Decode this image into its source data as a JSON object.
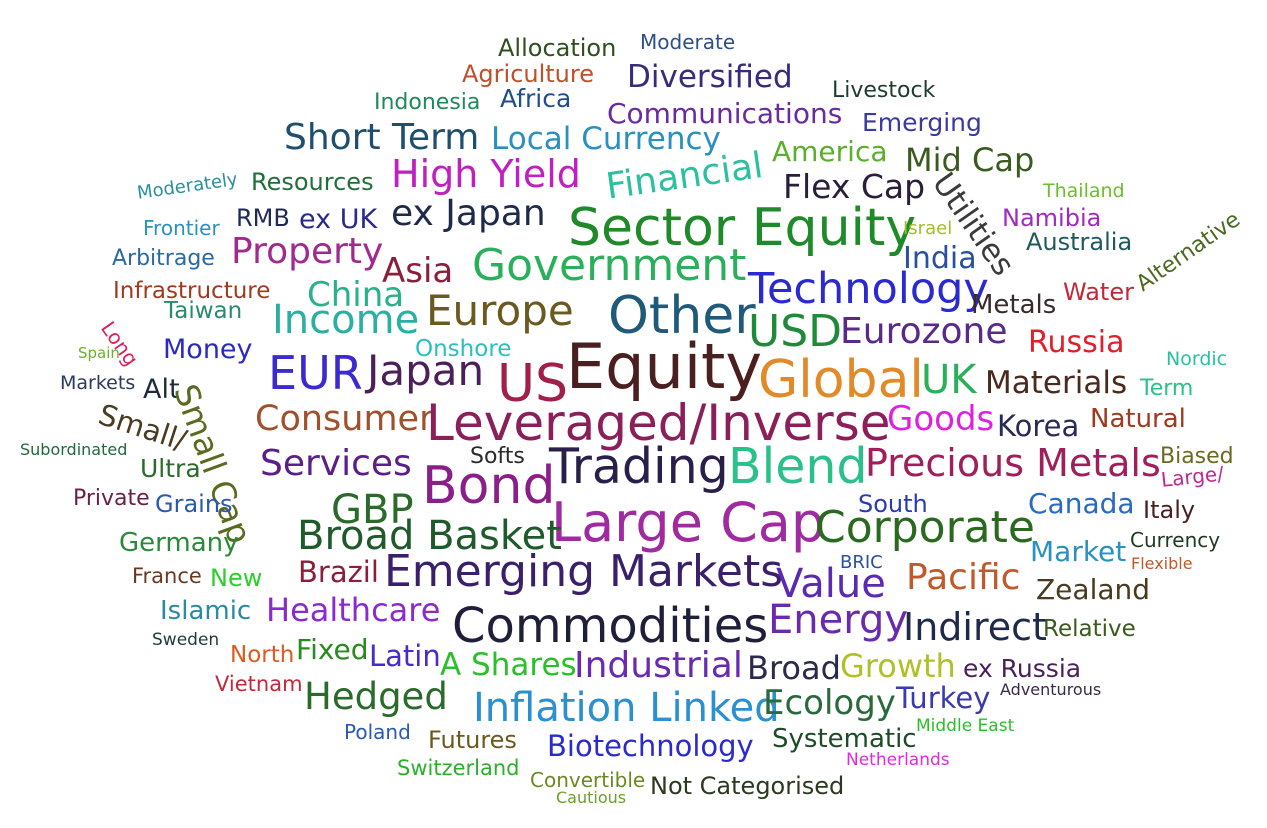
{
  "words": [
    {
      "text": "Allocation",
      "color": "#2f4f1f"
    },
    {
      "text": "Moderate",
      "color": "#2a4f8a"
    },
    {
      "text": "Agriculture",
      "color": "#c0502a"
    },
    {
      "text": "Diversified",
      "color": "#3a2a7a"
    },
    {
      "text": "Livestock",
      "color": "#1f3b2f"
    },
    {
      "text": "Indonesia",
      "color": "#1f8a5a"
    },
    {
      "text": "Africa",
      "color": "#1f4f8a"
    },
    {
      "text": "Communications",
      "color": "#6a2aa0"
    },
    {
      "text": "Emerging",
      "color": "#3a3aa0"
    },
    {
      "text": "Short Term",
      "color": "#1f4f6f"
    },
    {
      "text": "Local Currency",
      "color": "#2a90c0"
    },
    {
      "text": "America",
      "color": "#5ab02a"
    },
    {
      "text": "Mid Cap",
      "color": "#3a5a1f"
    },
    {
      "text": "Moderately",
      "color": "#2a90a0"
    },
    {
      "text": "Resources",
      "color": "#1f6f3a"
    },
    {
      "text": "High Yield",
      "color": "#c020c0"
    },
    {
      "text": "Financial",
      "color": "#2ac0a0"
    },
    {
      "text": "Flex Cap",
      "color": "#2a1f3a"
    },
    {
      "text": "Utilities",
      "color": "#3a3a3a"
    },
    {
      "text": "Thailand",
      "color": "#6ac02a"
    },
    {
      "text": "Frontier",
      "color": "#2a90c0"
    },
    {
      "text": "RMB",
      "color": "#1f2a5a"
    },
    {
      "text": "ex UK",
      "color": "#2a2a8a"
    },
    {
      "text": "ex Japan",
      "color": "#1f2a4a"
    },
    {
      "text": "Sector Equity",
      "color": "#1f8a2a"
    },
    {
      "text": "Israel",
      "color": "#a0c02a"
    },
    {
      "text": "Namibia",
      "color": "#a02ac0"
    },
    {
      "text": "Arbitrage",
      "color": "#2a6aa0"
    },
    {
      "text": "Property",
      "color": "#a02a90"
    },
    {
      "text": "Asia",
      "color": "#8a1f3a"
    },
    {
      "text": "Government",
      "color": "#2ab05a"
    },
    {
      "text": "India",
      "color": "#2a4fa0"
    },
    {
      "text": "Australia",
      "color": "#1f5a5a"
    },
    {
      "text": "Infrastructure",
      "color": "#a03a1f"
    },
    {
      "text": "China",
      "color": "#2ab08a"
    },
    {
      "text": "Technology",
      "color": "#2a2ad0"
    },
    {
      "text": "Metals",
      "color": "#3a2a2a"
    },
    {
      "text": "Water",
      "color": "#c02a3a"
    },
    {
      "text": "Alternative",
      "color": "#4a6a1f"
    },
    {
      "text": "Long",
      "color": "#e0205a"
    },
    {
      "text": "Taiwan",
      "color": "#2a8a6a"
    },
    {
      "text": "Income",
      "color": "#2ab0a0"
    },
    {
      "text": "Europe",
      "color": "#6a5a1f"
    },
    {
      "text": "Other",
      "color": "#1f5a7a"
    },
    {
      "text": "USD",
      "color": "#1f8a3a"
    },
    {
      "text": "Eurozone",
      "color": "#5a2a8a"
    },
    {
      "text": "Spain",
      "color": "#6ab02a"
    },
    {
      "text": "Money",
      "color": "#2a2ac0"
    },
    {
      "text": "Onshore",
      "color": "#2ac0c0"
    },
    {
      "text": "Russia",
      "color": "#e0202a"
    },
    {
      "text": "Nordic",
      "color": "#2ac0a0"
    },
    {
      "text": "Markets",
      "color": "#2a3a5a"
    },
    {
      "text": "Alt",
      "color": "#1f2a3a"
    },
    {
      "text": "EUR",
      "color": "#3a2ad0"
    },
    {
      "text": "Japan",
      "color": "#4a1f5a"
    },
    {
      "text": "US",
      "color": "#a0204a"
    },
    {
      "text": "Equity",
      "color": "#4a1f1f"
    },
    {
      "text": "Global",
      "color": "#e08a2a"
    },
    {
      "text": "UK",
      "color": "#2ab05a"
    },
    {
      "text": "Materials",
      "color": "#4a2a1f"
    },
    {
      "text": "Term",
      "color": "#2ac08a"
    },
    {
      "text": "Small/",
      "color": "#4a3a1f"
    },
    {
      "text": "Small Cap",
      "color": "#5a6a1f"
    },
    {
      "text": "Consumer",
      "color": "#a0502a"
    },
    {
      "text": "Leveraged/Inverse",
      "color": "#8a1f5a"
    },
    {
      "text": "Goods",
      "color": "#e020e0"
    },
    {
      "text": "Korea",
      "color": "#2a2a5a"
    },
    {
      "text": "Natural",
      "color": "#a03a1f"
    },
    {
      "text": "Subordinated",
      "color": "#1f6a3a"
    },
    {
      "text": "Ultra",
      "color": "#2a6a2a"
    },
    {
      "text": "Services",
      "color": "#5a1f8a"
    },
    {
      "text": "Softs",
      "color": "#2a2a2a"
    },
    {
      "text": "Trading",
      "color": "#2a1f4a"
    },
    {
      "text": "Blend",
      "color": "#2ac08a"
    },
    {
      "text": "Precious Metals",
      "color": "#a01f5a"
    },
    {
      "text": "Biased",
      "color": "#6a6a1f"
    },
    {
      "text": "Large/",
      "color": "#c02a90"
    },
    {
      "text": "Private",
      "color": "#6a1f4a"
    },
    {
      "text": "Grains",
      "color": "#2a5ab0"
    },
    {
      "text": "Bond",
      "color": "#8a1f8a"
    },
    {
      "text": "South",
      "color": "#2a3ab0"
    },
    {
      "text": "Canada",
      "color": "#2a6ac0"
    },
    {
      "text": "Italy",
      "color": "#4a1f1f"
    },
    {
      "text": "GBP",
      "color": "#2a6a2a"
    },
    {
      "text": "Large Cap",
      "color": "#a02aa0"
    },
    {
      "text": "Corporate",
      "color": "#2a6a1f"
    },
    {
      "text": "Germany",
      "color": "#2a8a3a"
    },
    {
      "text": "Broad Basket",
      "color": "#1f5a2a"
    },
    {
      "text": "Market",
      "color": "#2a90c0"
    },
    {
      "text": "Currency",
      "color": "#1f3a1f"
    },
    {
      "text": "BRIC",
      "color": "#2a4fa0"
    },
    {
      "text": "Flexible",
      "color": "#c05a2a"
    },
    {
      "text": "France",
      "color": "#6a3a1f"
    },
    {
      "text": "New",
      "color": "#2ad02a"
    },
    {
      "text": "Brazil",
      "color": "#8a1f3a"
    },
    {
      "text": "Emerging Markets",
      "color": "#3a1f6a"
    },
    {
      "text": "Value",
      "color": "#5a2ab0"
    },
    {
      "text": "Pacific",
      "color": "#c05a2a"
    },
    {
      "text": "Zealand",
      "color": "#4a3a1f"
    },
    {
      "text": "Islamic",
      "color": "#2a8aa0"
    },
    {
      "text": "Healthcare",
      "color": "#8a2ad0"
    },
    {
      "text": "Commodities",
      "color": "#1f1f3a"
    },
    {
      "text": "Energy",
      "color": "#6a2ab0"
    },
    {
      "text": "Indirect",
      "color": "#1f2a4a"
    },
    {
      "text": "Relative",
      "color": "#3a5a1f"
    },
    {
      "text": "Sweden",
      "color": "#1f3a3a"
    },
    {
      "text": "North",
      "color": "#e05a1f"
    },
    {
      "text": "Fixed",
      "color": "#2a8a1f"
    },
    {
      "text": "Latin",
      "color": "#4a2ad0"
    },
    {
      "text": "A Shares",
      "color": "#2ac02a"
    },
    {
      "text": "Industrial",
      "color": "#6a2ab0"
    },
    {
      "text": "Broad",
      "color": "#2a2a4a"
    },
    {
      "text": "Growth",
      "color": "#b0c02a"
    },
    {
      "text": "ex Russia",
      "color": "#4a1f5a"
    },
    {
      "text": "Vietnam",
      "color": "#c02a3a"
    },
    {
      "text": "Hedged",
      "color": "#2a6a2a"
    },
    {
      "text": "Inflation Linked",
      "color": "#2a90d0"
    },
    {
      "text": "Ecology",
      "color": "#2a6a3a"
    },
    {
      "text": "Turkey",
      "color": "#3a3ab0"
    },
    {
      "text": "Adventurous",
      "color": "#3a2a4a"
    },
    {
      "text": "Middle East",
      "color": "#2ac02a"
    },
    {
      "text": "Poland",
      "color": "#2a5ab0"
    },
    {
      "text": "Futures",
      "color": "#6a5a1f"
    },
    {
      "text": "Biotechnology",
      "color": "#2a2ad0"
    },
    {
      "text": "Systematic",
      "color": "#1f4a2a"
    },
    {
      "text": "Netherlands",
      "color": "#e02ae0"
    },
    {
      "text": "Switzerland",
      "color": "#2ab02a"
    },
    {
      "text": "Convertible",
      "color": "#6a8a1f"
    },
    {
      "text": "Cautious",
      "color": "#6aa02a"
    },
    {
      "text": "Not Categorised",
      "color": "#2a3a1f"
    }
  ]
}
